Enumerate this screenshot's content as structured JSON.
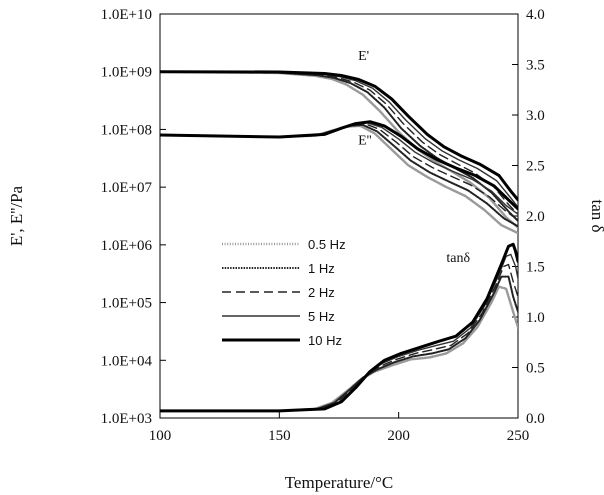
{
  "chart_data": {
    "type": "line",
    "title": "",
    "xlabel": "Temperature/°C",
    "ylabel_left": "E', E''/Pa",
    "ylabel_right": "tan δ",
    "x_ticks": [
      "100",
      "150",
      "200",
      "250"
    ],
    "x_tick_values": [
      100,
      150,
      200,
      250
    ],
    "y_left_ticks": [
      "1.0E+03",
      "1.0E+04",
      "1.0E+05",
      "1.0E+06",
      "1.0E+07",
      "1.0E+08",
      "1.0E+09",
      "1.0E+10"
    ],
    "y_left_tick_values": [
      1000.0,
      10000.0,
      100000.0,
      1000000.0,
      10000000.0,
      100000000.0,
      1000000000.0,
      10000000000.0
    ],
    "y_left_scale": "log",
    "y_right_ticks": [
      "0.0",
      "0.5",
      "1.0",
      "1.5",
      "2.0",
      "2.5",
      "3.0",
      "3.5",
      "4.0"
    ],
    "y_right_tick_values": [
      0,
      0.5,
      1.0,
      1.5,
      2.0,
      2.5,
      3.0,
      3.5,
      4.0
    ],
    "xlim": [
      100,
      250
    ],
    "ylim_left": [
      1000.0,
      10000000000.0
    ],
    "ylim_right": [
      0,
      4
    ],
    "grid": false,
    "legend_position": "center-left",
    "annotations": [
      {
        "text": "E'",
        "x": 183,
        "y_left": 1600000000.0
      },
      {
        "text": "E''",
        "x": 183,
        "y_left": 55000000.0
      },
      {
        "text": "tanδ",
        "x": 220,
        "y_left": 500000.0
      }
    ],
    "legend": [
      {
        "label": "0.5 Hz",
        "style": "dotted-grey",
        "stroke": "#9a9a9a",
        "width": 2.5,
        "dash": "1,1.6"
      },
      {
        "label": "1 Hz",
        "style": "dotted-black",
        "stroke": "#222222",
        "width": 2,
        "dash": "1.5,1.2"
      },
      {
        "label": "2 Hz",
        "style": "dashed",
        "stroke": "#222222",
        "width": 1.4,
        "dash": "9,5"
      },
      {
        "label": "5 Hz",
        "style": "thin-solid",
        "stroke": "#333333",
        "width": 1.4,
        "dash": ""
      },
      {
        "label": "10 Hz",
        "style": "thick-solid",
        "stroke": "#000000",
        "width": 3,
        "dash": ""
      }
    ],
    "series": [
      {
        "group": "E'",
        "name": "0.5 Hz",
        "axis": "left",
        "x": [
          100,
          150,
          165,
          172,
          178,
          185,
          192,
          200,
          208,
          215,
          222,
          230,
          238,
          245,
          250
        ],
        "y": [
          1000000000.0,
          950000000.0,
          850000000.0,
          750000000.0,
          600000000.0,
          400000000.0,
          210000000.0,
          90000000.0,
          45000000.0,
          28000000.0,
          19000000.0,
          12000000.0,
          6500000.0,
          3000000.0,
          2000000.0
        ]
      },
      {
        "group": "E'",
        "name": "1 Hz",
        "axis": "left",
        "x": [
          100,
          150,
          166,
          173,
          180,
          187,
          194,
          201,
          209,
          216,
          223,
          231,
          239,
          246,
          250
        ],
        "y": [
          1000000000.0,
          960000000.0,
          870000000.0,
          780000000.0,
          630000000.0,
          440000000.0,
          240000000.0,
          105000000.0,
          52000000.0,
          32000000.0,
          22000000.0,
          14500000.0,
          8000000.0,
          3800000.0,
          2600000.0
        ]
      },
      {
        "group": "E'",
        "name": "2 Hz",
        "axis": "left",
        "x": [
          100,
          150,
          167,
          174,
          181,
          188,
          195,
          202,
          210,
          217,
          224,
          232,
          240,
          246,
          250
        ],
        "y": [
          1000000000.0,
          970000000.0,
          890000000.0,
          800000000.0,
          660000000.0,
          480000000.0,
          270000000.0,
          125000000.0,
          60000000.0,
          37000000.0,
          26000000.0,
          17500000.0,
          10000000.0,
          5000000.0,
          3400000.0
        ]
      },
      {
        "group": "E'",
        "name": "5 Hz",
        "axis": "left",
        "x": [
          100,
          150,
          168,
          175,
          182,
          189,
          196,
          203,
          211,
          218,
          225,
          233,
          241,
          247,
          250
        ],
        "y": [
          1000000000.0,
          980000000.0,
          910000000.0,
          830000000.0,
          700000000.0,
          520000000.0,
          300000000.0,
          145000000.0,
          70000000.0,
          43000000.0,
          30000000.0,
          21000000.0,
          13000000.0,
          6500000.0,
          4500000.0
        ]
      },
      {
        "group": "E'",
        "name": "10 Hz",
        "axis": "left",
        "x": [
          100,
          150,
          169,
          176,
          183,
          190,
          197,
          204,
          212,
          219,
          226,
          234,
          242,
          247,
          250
        ],
        "y": [
          1000000000.0,
          990000000.0,
          930000000.0,
          860000000.0,
          740000000.0,
          560000000.0,
          340000000.0,
          170000000.0,
          82000000.0,
          50000000.0,
          35000000.0,
          25000000.0,
          16000000.0,
          8500000.0,
          6000000.0
        ]
      },
      {
        "group": "E''",
        "name": "0.5 Hz",
        "axis": "left",
        "x": [
          100,
          150,
          165,
          172,
          178,
          184,
          190,
          197,
          204,
          212,
          220,
          228,
          236,
          243,
          250
        ],
        "y": [
          80000000.0,
          74000000.0,
          78000000.0,
          95000000.0,
          112000000.0,
          115000000.0,
          85000000.0,
          45000000.0,
          24000000.0,
          15000000.0,
          10000000.0,
          7000000.0,
          4000000.0,
          2200000.0,
          1600000.0
        ]
      },
      {
        "group": "E''",
        "name": "1 Hz",
        "axis": "left",
        "x": [
          100,
          150,
          166,
          173,
          179,
          185,
          191,
          198,
          205,
          213,
          221,
          229,
          237,
          244,
          250
        ],
        "y": [
          80000000.0,
          74000000.0,
          79000000.0,
          97000000.0,
          115000000.0,
          120000000.0,
          92000000.0,
          52000000.0,
          29000000.0,
          18000000.0,
          12500000.0,
          8800000.0,
          5200000.0,
          2900000.0,
          2100000.0
        ]
      },
      {
        "group": "E''",
        "name": "2 Hz",
        "axis": "left",
        "x": [
          100,
          150,
          167,
          174,
          180,
          186,
          192,
          199,
          206,
          214,
          222,
          230,
          238,
          245,
          250
        ],
        "y": [
          80000000.0,
          74000000.0,
          80000000.0,
          100000000.0,
          118000000.0,
          125000000.0,
          100000000.0,
          60000000.0,
          34000000.0,
          22000000.0,
          15500000.0,
          11000000.0,
          6800000.0,
          3800000.0,
          2700000.0
        ]
      },
      {
        "group": "E''",
        "name": "5 Hz",
        "axis": "left",
        "x": [
          100,
          150,
          168,
          175,
          181,
          187,
          193,
          200,
          207,
          215,
          223,
          231,
          239,
          245,
          250
        ],
        "y": [
          80000000.0,
          74000000.0,
          81000000.0,
          102000000.0,
          122000000.0,
          130000000.0,
          108000000.0,
          68000000.0,
          40000000.0,
          26000000.0,
          18500000.0,
          13500000.0,
          8500000.0,
          4800000.0,
          3400000.0
        ]
      },
      {
        "group": "E''",
        "name": "10 Hz",
        "axis": "left",
        "x": [
          100,
          150,
          169,
          176,
          182,
          188,
          194,
          201,
          208,
          216,
          224,
          232,
          240,
          246,
          250
        ],
        "y": [
          80000000.0,
          74000000.0,
          82000000.0,
          105000000.0,
          126000000.0,
          136000000.0,
          115000000.0,
          76000000.0,
          46000000.0,
          30000000.0,
          21500000.0,
          16000000.0,
          10500000.0,
          6000000.0,
          4200000.0
        ]
      },
      {
        "group": "tanδ",
        "name": "0.5 Hz",
        "axis": "right",
        "x": [
          100,
          150,
          165,
          172,
          178,
          184,
          190,
          197,
          205,
          213,
          220,
          227,
          233,
          239,
          242,
          245,
          248,
          250
        ],
        "y": [
          0.07,
          0.07,
          0.09,
          0.15,
          0.26,
          0.38,
          0.46,
          0.52,
          0.58,
          0.6,
          0.64,
          0.74,
          0.9,
          1.15,
          1.3,
          1.28,
          1.05,
          0.9
        ]
      },
      {
        "group": "tanδ",
        "name": "1 Hz",
        "axis": "right",
        "x": [
          100,
          150,
          166,
          173,
          179,
          185,
          191,
          198,
          206,
          214,
          221,
          228,
          234,
          240,
          243,
          246,
          248,
          250
        ],
        "y": [
          0.07,
          0.07,
          0.09,
          0.15,
          0.27,
          0.4,
          0.48,
          0.55,
          0.61,
          0.64,
          0.68,
          0.79,
          0.97,
          1.24,
          1.4,
          1.4,
          1.2,
          1.05
        ]
      },
      {
        "group": "tanδ",
        "name": "2 Hz",
        "axis": "right",
        "x": [
          100,
          150,
          167,
          174,
          180,
          186,
          192,
          199,
          207,
          215,
          222,
          229,
          235,
          241,
          244,
          246,
          248,
          250
        ],
        "y": [
          0.07,
          0.07,
          0.09,
          0.15,
          0.28,
          0.42,
          0.51,
          0.58,
          0.64,
          0.68,
          0.72,
          0.84,
          1.04,
          1.33,
          1.5,
          1.52,
          1.35,
          1.2
        ]
      },
      {
        "group": "tanδ",
        "name": "5 Hz",
        "axis": "right",
        "x": [
          100,
          150,
          168,
          175,
          181,
          187,
          193,
          200,
          208,
          216,
          223,
          230,
          236,
          242,
          245,
          247,
          249,
          250
        ],
        "y": [
          0.07,
          0.07,
          0.09,
          0.15,
          0.29,
          0.44,
          0.54,
          0.61,
          0.67,
          0.72,
          0.76,
          0.89,
          1.11,
          1.42,
          1.6,
          1.62,
          1.5,
          1.38
        ]
      },
      {
        "group": "tanδ",
        "name": "10 Hz",
        "axis": "right",
        "x": [
          100,
          150,
          169,
          176,
          182,
          188,
          194,
          201,
          209,
          217,
          224,
          231,
          237,
          243,
          246,
          248,
          249,
          250
        ],
        "y": [
          0.07,
          0.07,
          0.09,
          0.16,
          0.3,
          0.46,
          0.57,
          0.64,
          0.7,
          0.76,
          0.81,
          0.95,
          1.18,
          1.52,
          1.7,
          1.72,
          1.65,
          1.55
        ]
      }
    ]
  }
}
